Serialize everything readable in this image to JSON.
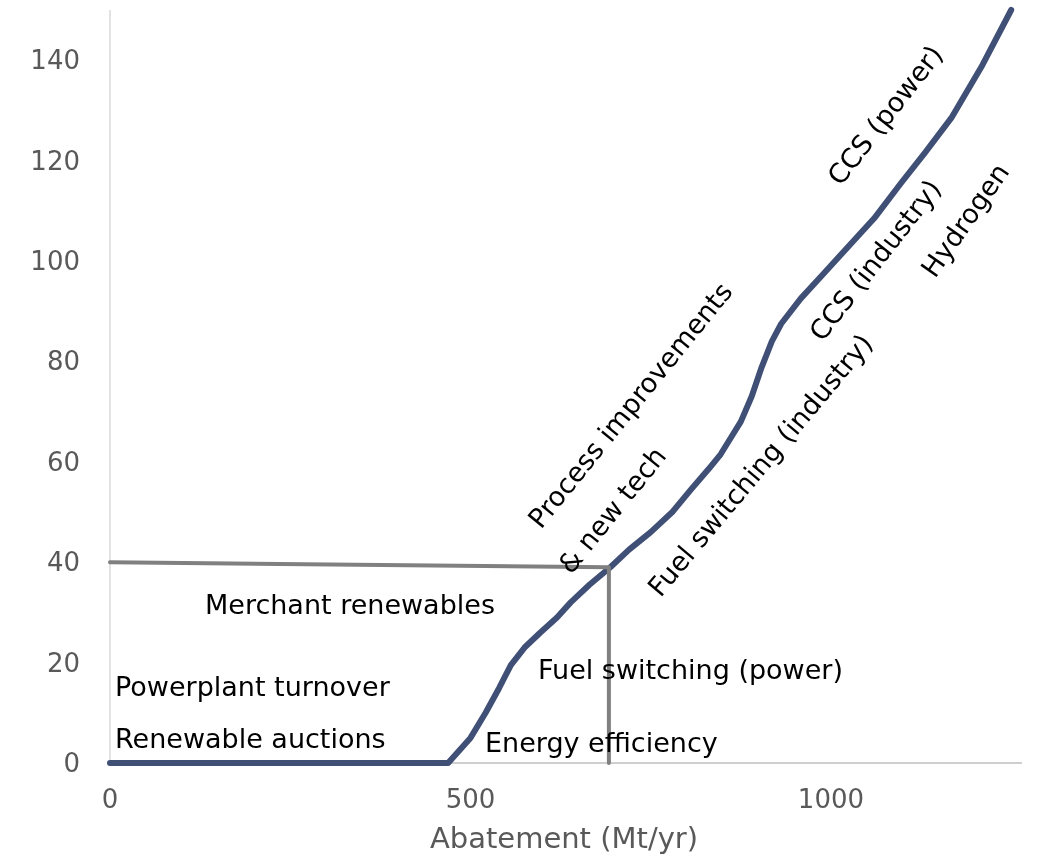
{
  "chart_data": {
    "type": "line",
    "xlabel": "Abatement (Mt/yr)",
    "xlim": [
      0,
      1265
    ],
    "xticks": [
      0,
      500,
      1000
    ],
    "ylim": [
      0,
      150
    ],
    "yticks": [
      0,
      20,
      40,
      60,
      80,
      100,
      120,
      140
    ],
    "grid": false,
    "marker": "none",
    "series": [
      {
        "color": "#3f4f75",
        "x": [
          0,
          469,
          500,
          521,
          540,
          556,
          575,
          597,
          620,
          639,
          665,
          694,
          720,
          750,
          780,
          806,
          830,
          847,
          862,
          875,
          890,
          903,
          918,
          931,
          958,
          990,
          1028,
          1060,
          1097,
          1130,
          1167,
          1210,
          1250
        ],
        "values": [
          0,
          0,
          5,
          10,
          15,
          19.5,
          23,
          26,
          29,
          32,
          35.5,
          39,
          42.5,
          46,
          50,
          54.5,
          58.5,
          61.5,
          65,
          68,
          73,
          78.5,
          84,
          87.5,
          92.5,
          97.5,
          103.5,
          108.5,
          115.5,
          121.5,
          128.5,
          139,
          150
        ]
      },
      {
        "color": "#808080",
        "x": [
          0,
          692,
          692
        ],
        "values": [
          40,
          39,
          0
        ]
      }
    ],
    "annotations": [
      "Renewable auctions",
      "Powerplant turnover",
      "Merchant renewables",
      "Energy efficiency",
      "Fuel switching (power)",
      "Process improvements",
      "& new tech",
      "Fuel switching (industry)",
      "CCS (industry)",
      "CCS (power)",
      "Hydrogen"
    ]
  }
}
